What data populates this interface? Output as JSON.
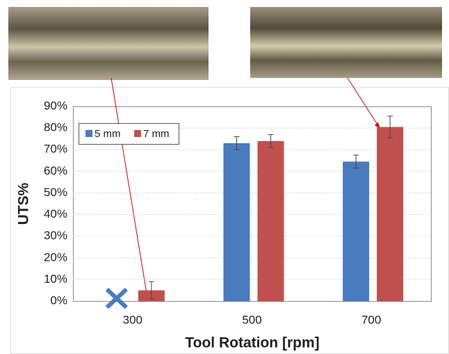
{
  "chart_data": {
    "type": "bar",
    "x_label": "Tool Rotation [rpm]",
    "y_label": "UTS%",
    "categories": [
      "300",
      "500",
      "700"
    ],
    "series": [
      {
        "name": "5 mm",
        "color": "#4a7bbf",
        "values": [
          null,
          73,
          64.5
        ],
        "errors": [
          null,
          3,
          3
        ]
      },
      {
        "name": "7 mm",
        "color": "#c0504d",
        "values": [
          5,
          74,
          80.5
        ],
        "errors": [
          4,
          3,
          5
        ]
      }
    ],
    "ylim": [
      0,
      90
    ],
    "yticks": [
      {
        "value": 0,
        "label": "0%"
      },
      {
        "value": 10,
        "label": "10%"
      },
      {
        "value": 20,
        "label": "20%"
      },
      {
        "value": 30,
        "label": "30%"
      },
      {
        "value": 40,
        "label": "40%"
      },
      {
        "value": 50,
        "label": "50%"
      },
      {
        "value": 60,
        "label": "60%"
      },
      {
        "value": 70,
        "label": "70%"
      },
      {
        "value": 80,
        "label": "80%"
      },
      {
        "value": 90,
        "label": "90%"
      }
    ],
    "grid": true
  }
}
